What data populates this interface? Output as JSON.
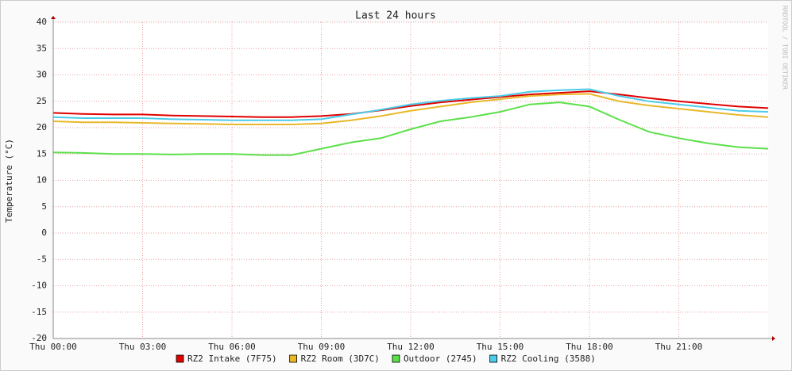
{
  "chart_data": {
    "type": "line",
    "title": "Last 24 hours",
    "y_label": "Temperature (°C)",
    "watermark": "RRDTOOL / TOBI OETIKER",
    "x": [
      0,
      1,
      2,
      3,
      4,
      5,
      6,
      7,
      8,
      9,
      10,
      11,
      12,
      13,
      14,
      15,
      16,
      17,
      18,
      19,
      20,
      21,
      22,
      23,
      24
    ],
    "xlim": [
      0,
      24
    ],
    "xticks": [
      {
        "value": 0,
        "label": "Thu 00:00"
      },
      {
        "value": 3,
        "label": "Thu 03:00"
      },
      {
        "value": 6,
        "label": "Thu 06:00"
      },
      {
        "value": 9,
        "label": "Thu 09:00"
      },
      {
        "value": 12,
        "label": "Thu 12:00"
      },
      {
        "value": 15,
        "label": "Thu 15:00"
      },
      {
        "value": 18,
        "label": "Thu 18:00"
      },
      {
        "value": 21,
        "label": "Thu 21:00"
      }
    ],
    "ylim": [
      -20,
      40
    ],
    "yticks": [
      40,
      35,
      30,
      25,
      20,
      15,
      10,
      5,
      0,
      -5,
      -10,
      -15,
      -20
    ],
    "grid": true,
    "series": [
      {
        "name": "RZ2 Intake (7F75)",
        "color": "#e00000",
        "values": [
          22.8,
          22.6,
          22.5,
          22.5,
          22.3,
          22.2,
          22.1,
          22.0,
          22.0,
          22.2,
          22.6,
          23.3,
          24.1,
          24.8,
          25.3,
          25.8,
          26.3,
          26.6,
          26.9,
          26.3,
          25.6,
          25.0,
          24.5,
          24.0,
          23.7
        ]
      },
      {
        "name": "RZ2 Room (3D7C)",
        "color": "#e8b82a",
        "values": [
          21.2,
          21.0,
          21.0,
          20.9,
          20.8,
          20.7,
          20.6,
          20.6,
          20.6,
          20.8,
          21.4,
          22.2,
          23.2,
          24.0,
          24.8,
          25.4,
          26.0,
          26.3,
          26.4,
          25.0,
          24.2,
          23.6,
          23.0,
          22.4,
          22.0
        ]
      },
      {
        "name": "Outdoor (2745)",
        "color": "#5ce04a",
        "values": [
          15.3,
          15.2,
          15.0,
          15.0,
          14.9,
          15.0,
          15.0,
          14.8,
          14.8,
          16.0,
          17.2,
          18.0,
          19.7,
          21.2,
          22.0,
          23.0,
          24.4,
          24.8,
          24.0,
          21.5,
          19.2,
          18.0,
          17.0,
          16.3,
          16.0
        ]
      },
      {
        "name": "RZ2 Cooling (3588)",
        "color": "#4ccce8",
        "values": [
          22.0,
          21.8,
          21.8,
          21.8,
          21.6,
          21.5,
          21.4,
          21.4,
          21.4,
          21.6,
          22.5,
          23.4,
          24.4,
          25.1,
          25.6,
          26.0,
          26.8,
          27.1,
          27.3,
          26.0,
          25.0,
          24.4,
          23.8,
          23.2,
          23.0
        ]
      }
    ]
  }
}
